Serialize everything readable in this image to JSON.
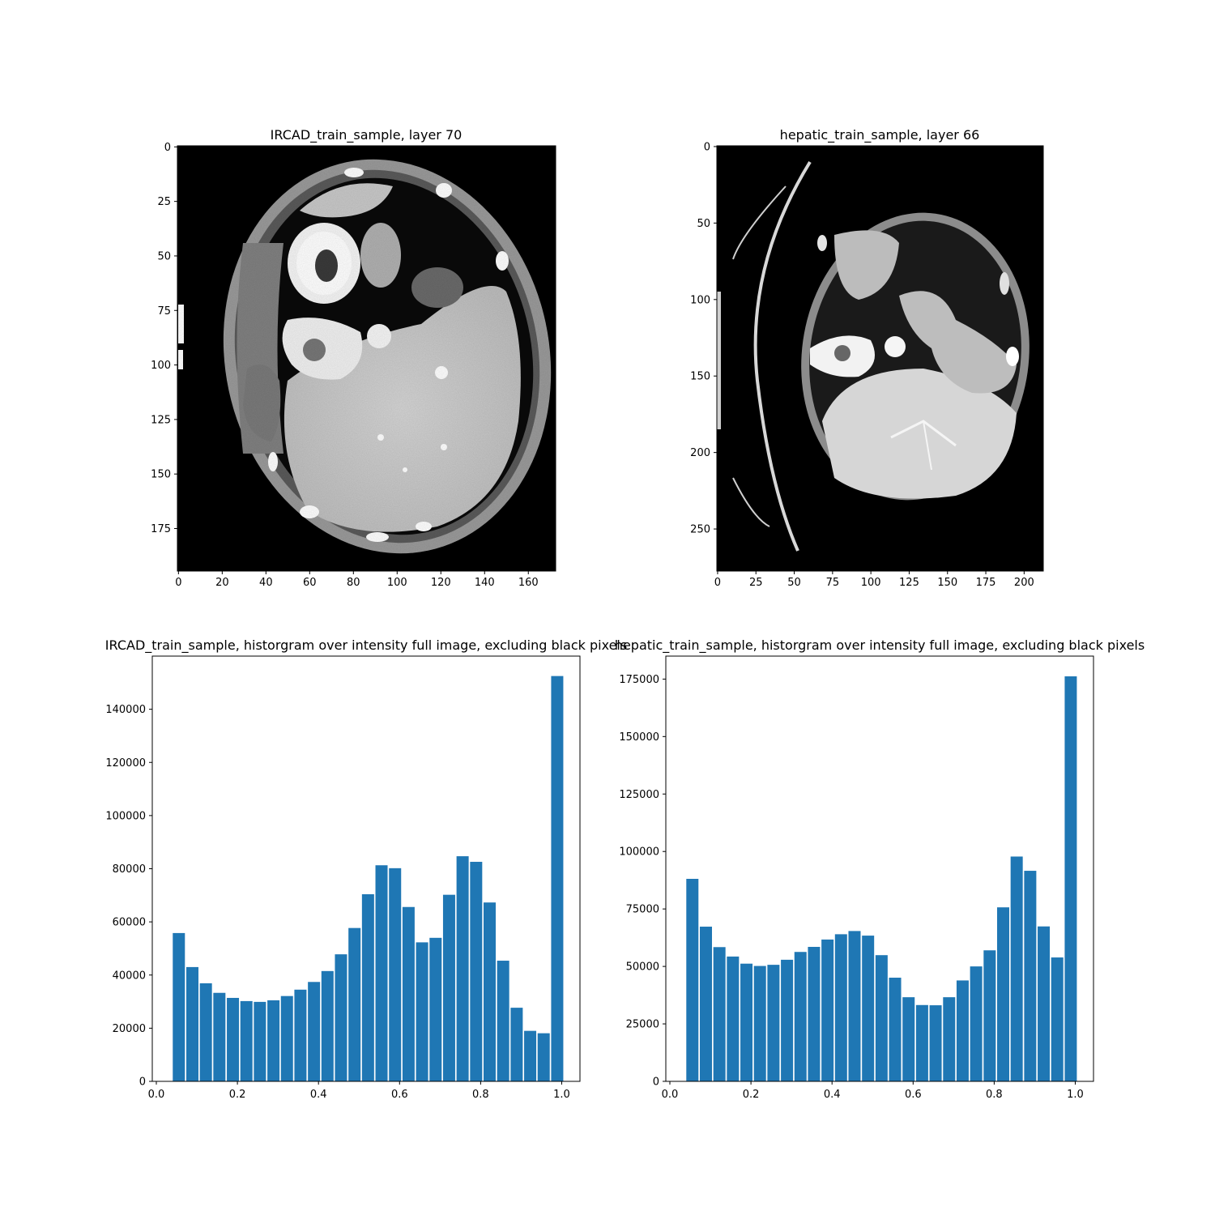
{
  "chart_data": [
    {
      "type": "image",
      "title": "IRCAD_train_sample, layer 70",
      "width": 173,
      "height": 195,
      "xticks": [
        0,
        20,
        40,
        60,
        80,
        100,
        120,
        140,
        160
      ],
      "yticks": [
        0,
        25,
        50,
        75,
        100,
        125,
        150,
        175
      ]
    },
    {
      "type": "image",
      "title": "hepatic_train_sample, layer 66",
      "width": 213,
      "height": 278,
      "xticks": [
        0,
        25,
        50,
        75,
        100,
        125,
        150,
        175,
        200
      ],
      "yticks": [
        0,
        50,
        100,
        150,
        200,
        250
      ]
    },
    {
      "type": "bar",
      "title": "IRCAD_train_sample, historgram over intensity full image, excluding black pixels",
      "bin_width": 0.0333,
      "bar_width_fraction": 0.9,
      "x": [
        0.0555,
        0.0889,
        0.1222,
        0.1555,
        0.1889,
        0.2222,
        0.2555,
        0.2889,
        0.3222,
        0.3555,
        0.3889,
        0.4222,
        0.4555,
        0.4889,
        0.5222,
        0.5555,
        0.5889,
        0.6222,
        0.6555,
        0.6889,
        0.7222,
        0.7555,
        0.7889,
        0.8222,
        0.8555,
        0.8889,
        0.9222,
        0.9555,
        0.9889
      ],
      "values": [
        55800,
        43000,
        36900,
        33300,
        31400,
        30200,
        29900,
        30500,
        32100,
        34500,
        37400,
        41500,
        47800,
        57700,
        70400,
        81300,
        80200,
        65600,
        52300,
        54000,
        70200,
        84700,
        82600,
        67300,
        45400,
        27700,
        19000,
        18100,
        152500
      ],
      "xlim": [
        -0.01,
        1.045
      ],
      "ylim": [
        0,
        160000
      ],
      "xticks": [
        0.0,
        0.2,
        0.4,
        0.6,
        0.8,
        1.0
      ],
      "xtick_labels": [
        "0.0",
        "0.2",
        "0.4",
        "0.6",
        "0.8",
        "1.0"
      ],
      "yticks": [
        0,
        20000,
        40000,
        60000,
        80000,
        100000,
        120000,
        140000
      ],
      "color": "#1f77b4"
    },
    {
      "type": "bar",
      "title": "hepatic_train_sample, historgram over intensity full image, excluding black pixels",
      "bin_width": 0.0333,
      "bar_width_fraction": 0.9,
      "x": [
        0.0555,
        0.0889,
        0.1222,
        0.1555,
        0.1889,
        0.2222,
        0.2555,
        0.2889,
        0.3222,
        0.3555,
        0.3889,
        0.4222,
        0.4555,
        0.4889,
        0.5222,
        0.5555,
        0.5889,
        0.6222,
        0.6555,
        0.6889,
        0.7222,
        0.7555,
        0.7889,
        0.8222,
        0.8555,
        0.8889,
        0.9222,
        0.9555,
        0.9889
      ],
      "values": [
        88100,
        67300,
        58400,
        54300,
        51200,
        50200,
        50700,
        52900,
        56300,
        58500,
        61700,
        64000,
        65400,
        63400,
        54900,
        45100,
        36600,
        33200,
        33100,
        36600,
        43900,
        50000,
        57000,
        75700,
        97800,
        91600,
        67400,
        53900,
        176200
      ],
      "xlim": [
        -0.01,
        1.045
      ],
      "ylim": [
        0,
        185000
      ],
      "xticks": [
        0.0,
        0.2,
        0.4,
        0.6,
        0.8,
        1.0
      ],
      "xtick_labels": [
        "0.0",
        "0.2",
        "0.4",
        "0.6",
        "0.8",
        "1.0"
      ],
      "yticks": [
        0,
        25000,
        50000,
        75000,
        100000,
        125000,
        150000,
        175000
      ],
      "color": "#1f77b4"
    }
  ]
}
